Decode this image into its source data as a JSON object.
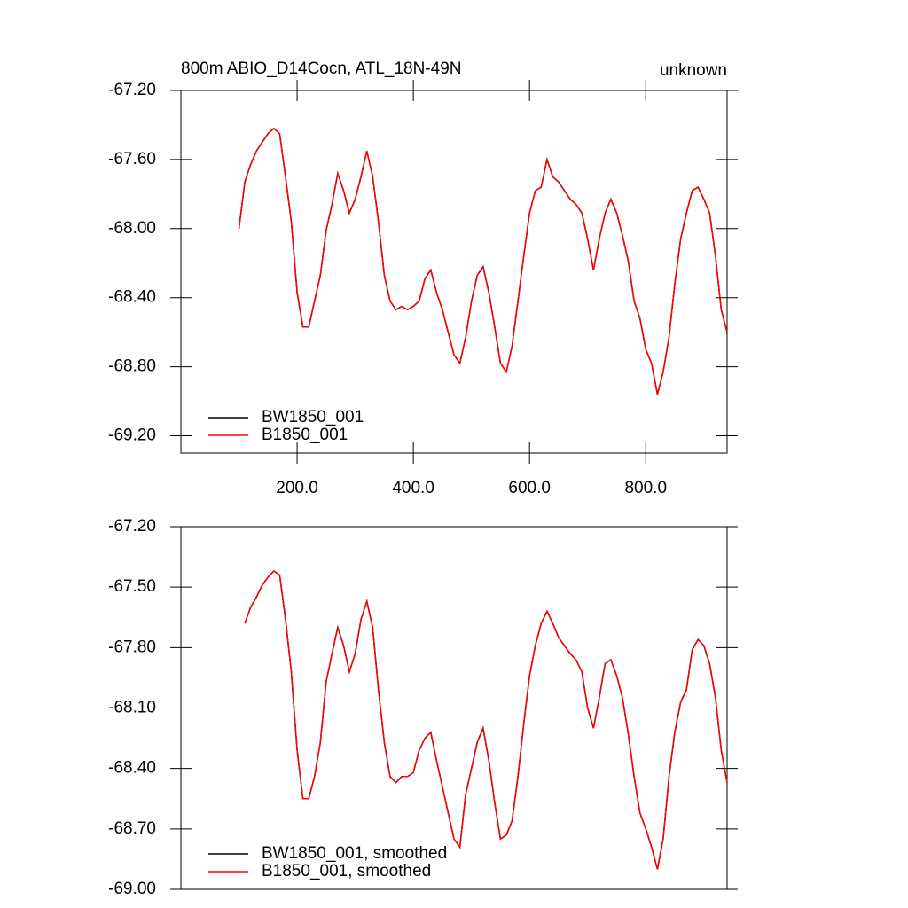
{
  "chart_data": [
    {
      "type": "line",
      "title": "800m ABIO_D14Cocn, ATL_18N-49N",
      "subtitle": "unknown",
      "x": [
        100,
        110,
        120,
        130,
        140,
        150,
        160,
        170,
        180,
        190,
        200,
        210,
        220,
        230,
        240,
        250,
        260,
        270,
        280,
        290,
        300,
        310,
        320,
        330,
        340,
        350,
        360,
        370,
        380,
        390,
        400,
        410,
        420,
        430,
        440,
        450,
        460,
        470,
        480,
        490,
        500,
        510,
        520,
        530,
        540,
        550,
        560,
        570,
        580,
        590,
        600,
        610,
        620,
        630,
        640,
        650,
        660,
        670,
        680,
        690,
        700,
        710,
        720,
        730,
        740,
        750,
        760,
        770,
        780,
        790,
        800,
        810,
        820,
        830,
        840,
        850,
        860,
        870,
        880,
        890,
        900,
        910,
        920,
        930,
        940
      ],
      "series": [
        {
          "name": "BW1850_001",
          "color": "#000000",
          "values": [
            -68.0,
            -67.73,
            -67.63,
            -67.55,
            -67.5,
            -67.45,
            -67.42,
            -67.45,
            -67.7,
            -67.96,
            -68.37,
            -68.57,
            -68.57,
            -68.42,
            -68.27,
            -68.01,
            -67.86,
            -67.68,
            -67.78,
            -67.91,
            -67.83,
            -67.7,
            -67.55,
            -67.7,
            -67.96,
            -68.27,
            -68.42,
            -68.47,
            -68.45,
            -68.47,
            -68.45,
            -68.42,
            -68.29,
            -68.24,
            -68.37,
            -68.47,
            -68.6,
            -68.73,
            -68.78,
            -68.63,
            -68.42,
            -68.27,
            -68.22,
            -68.37,
            -68.57,
            -68.78,
            -68.83,
            -68.68,
            -68.42,
            -68.16,
            -67.91,
            -67.78,
            -67.76,
            -67.6,
            -67.7,
            -67.73,
            -67.78,
            -67.83,
            -67.86,
            -67.91,
            -68.06,
            -68.24,
            -68.06,
            -67.91,
            -67.83,
            -67.91,
            -68.04,
            -68.19,
            -68.42,
            -68.52,
            -68.7,
            -68.78,
            -68.96,
            -68.83,
            -68.63,
            -68.32,
            -68.06,
            -67.91,
            -67.78,
            -67.76,
            -67.83,
            -67.91,
            -68.16,
            -68.47,
            -68.6
          ]
        },
        {
          "name": "B1850_001",
          "color": "#ff0000",
          "values": [
            -68.0,
            -67.73,
            -67.63,
            -67.55,
            -67.5,
            -67.45,
            -67.42,
            -67.45,
            -67.7,
            -67.96,
            -68.37,
            -68.57,
            -68.57,
            -68.42,
            -68.27,
            -68.01,
            -67.86,
            -67.68,
            -67.78,
            -67.91,
            -67.83,
            -67.7,
            -67.55,
            -67.7,
            -67.96,
            -68.27,
            -68.42,
            -68.47,
            -68.45,
            -68.47,
            -68.45,
            -68.42,
            -68.29,
            -68.24,
            -68.37,
            -68.47,
            -68.6,
            -68.73,
            -68.78,
            -68.63,
            -68.42,
            -68.27,
            -68.22,
            -68.37,
            -68.57,
            -68.78,
            -68.83,
            -68.68,
            -68.42,
            -68.16,
            -67.91,
            -67.78,
            -67.76,
            -67.6,
            -67.7,
            -67.73,
            -67.78,
            -67.83,
            -67.86,
            -67.91,
            -68.06,
            -68.24,
            -68.06,
            -67.91,
            -67.83,
            -67.91,
            -68.04,
            -68.19,
            -68.42,
            -68.52,
            -68.7,
            -68.78,
            -68.96,
            -68.83,
            -68.63,
            -68.32,
            -68.06,
            -67.91,
            -67.78,
            -67.76,
            -67.83,
            -67.91,
            -68.16,
            -68.47,
            -68.6
          ]
        }
      ],
      "xlim": [
        0,
        940
      ],
      "xticks": [
        {
          "value": 200,
          "label": "200.0"
        },
        {
          "value": 400,
          "label": "400.0"
        },
        {
          "value": 600,
          "label": "600.0"
        },
        {
          "value": 800,
          "label": "800.0"
        }
      ],
      "ylim": [
        -69.3,
        -67.2
      ],
      "yticks": [
        {
          "value": -67.2,
          "label": "-67.20"
        },
        {
          "value": -67.6,
          "label": "-67.60"
        },
        {
          "value": -68.0,
          "label": "-68.00"
        },
        {
          "value": -68.4,
          "label": "-68.40"
        },
        {
          "value": -68.8,
          "label": "-68.80"
        },
        {
          "value": -69.2,
          "label": "-69.20"
        }
      ],
      "legend": "lower left"
    },
    {
      "type": "line",
      "x": [
        110,
        120,
        130,
        140,
        150,
        160,
        170,
        180,
        190,
        200,
        210,
        220,
        230,
        240,
        250,
        260,
        270,
        280,
        290,
        300,
        310,
        320,
        330,
        340,
        350,
        360,
        370,
        380,
        390,
        400,
        410,
        420,
        430,
        440,
        450,
        460,
        470,
        480,
        490,
        500,
        510,
        520,
        530,
        540,
        550,
        560,
        570,
        580,
        590,
        600,
        610,
        620,
        630,
        640,
        650,
        660,
        670,
        680,
        690,
        700,
        710,
        720,
        730,
        740,
        750,
        760,
        770,
        780,
        790,
        800,
        810,
        820,
        830,
        840,
        850,
        860,
        870,
        880,
        890,
        900,
        910,
        920,
        930,
        940
      ],
      "series": [
        {
          "name": "BW1850_001, smoothed",
          "color": "#000000",
          "values": [
            -67.68,
            -67.6,
            -67.55,
            -67.49,
            -67.45,
            -67.42,
            -67.44,
            -67.66,
            -67.92,
            -68.31,
            -68.55,
            -68.55,
            -68.44,
            -68.27,
            -67.97,
            -67.83,
            -67.7,
            -67.79,
            -67.92,
            -67.83,
            -67.66,
            -67.57,
            -67.7,
            -68.01,
            -68.27,
            -68.44,
            -68.47,
            -68.44,
            -68.44,
            -68.42,
            -68.31,
            -68.25,
            -68.22,
            -68.36,
            -68.49,
            -68.62,
            -68.75,
            -68.79,
            -68.53,
            -68.4,
            -68.27,
            -68.2,
            -68.36,
            -68.57,
            -68.75,
            -68.73,
            -68.66,
            -68.44,
            -68.18,
            -67.94,
            -67.79,
            -67.68,
            -67.62,
            -67.68,
            -67.75,
            -67.79,
            -67.83,
            -67.86,
            -67.92,
            -68.1,
            -68.2,
            -68.05,
            -67.88,
            -67.86,
            -67.94,
            -68.05,
            -68.23,
            -68.44,
            -68.62,
            -68.7,
            -68.79,
            -68.9,
            -68.75,
            -68.44,
            -68.22,
            -68.07,
            -68.01,
            -67.81,
            -67.76,
            -67.79,
            -67.88,
            -68.05,
            -68.31,
            -68.47
          ]
        },
        {
          "name": "B1850_001, smoothed",
          "color": "#ff0000",
          "values": [
            -67.68,
            -67.6,
            -67.55,
            -67.49,
            -67.45,
            -67.42,
            -67.44,
            -67.66,
            -67.92,
            -68.31,
            -68.55,
            -68.55,
            -68.44,
            -68.27,
            -67.97,
            -67.83,
            -67.7,
            -67.79,
            -67.92,
            -67.83,
            -67.66,
            -67.57,
            -67.7,
            -68.01,
            -68.27,
            -68.44,
            -68.47,
            -68.44,
            -68.44,
            -68.42,
            -68.31,
            -68.25,
            -68.22,
            -68.36,
            -68.49,
            -68.62,
            -68.75,
            -68.79,
            -68.53,
            -68.4,
            -68.27,
            -68.2,
            -68.36,
            -68.57,
            -68.75,
            -68.73,
            -68.66,
            -68.44,
            -68.18,
            -67.94,
            -67.79,
            -67.68,
            -67.62,
            -67.68,
            -67.75,
            -67.79,
            -67.83,
            -67.86,
            -67.92,
            -68.1,
            -68.2,
            -68.05,
            -67.88,
            -67.86,
            -67.94,
            -68.05,
            -68.23,
            -68.44,
            -68.62,
            -68.7,
            -68.79,
            -68.9,
            -68.75,
            -68.44,
            -68.22,
            -68.07,
            -68.01,
            -67.81,
            -67.76,
            -67.79,
            -67.88,
            -68.05,
            -68.31,
            -68.47
          ]
        }
      ],
      "xlim": [
        0,
        940
      ],
      "ylim": [
        -69.0,
        -67.2
      ],
      "yticks": [
        {
          "value": -67.2,
          "label": "-67.20"
        },
        {
          "value": -67.5,
          "label": "-67.50"
        },
        {
          "value": -67.8,
          "label": "-67.80"
        },
        {
          "value": -68.1,
          "label": "-68.10"
        },
        {
          "value": -68.4,
          "label": "-68.40"
        },
        {
          "value": -68.7,
          "label": "-68.70"
        },
        {
          "value": -69.0,
          "label": "-69.00"
        }
      ],
      "legend": "lower left"
    }
  ]
}
